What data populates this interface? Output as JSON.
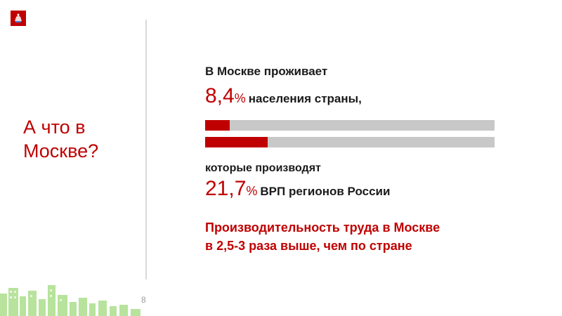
{
  "colors": {
    "accent": "#c00000",
    "track": "#c8c8c8",
    "skyline": "#8fd06a"
  },
  "logo": {
    "icon": "moscow-coat-of-arms-icon"
  },
  "left_title": {
    "line1": "А что в",
    "line2": "Москве?"
  },
  "intro": "В Москве проживает",
  "population": {
    "value": "8,4",
    "unit": "%",
    "text": "населения страны,"
  },
  "subtitle": "которые производят",
  "grp": {
    "value": "21,7",
    "unit": "%",
    "text": "ВРП регионов России"
  },
  "bars": [
    {
      "value_percent": 8.4
    },
    {
      "value_percent": 21.7
    }
  ],
  "conclusion": {
    "line1": "Производительность труда в Москве",
    "line2": "в 2,5-3 раза выше, чем по стране"
  },
  "page_number": "8",
  "skyline": {
    "icon": "city-skyline-icon"
  }
}
